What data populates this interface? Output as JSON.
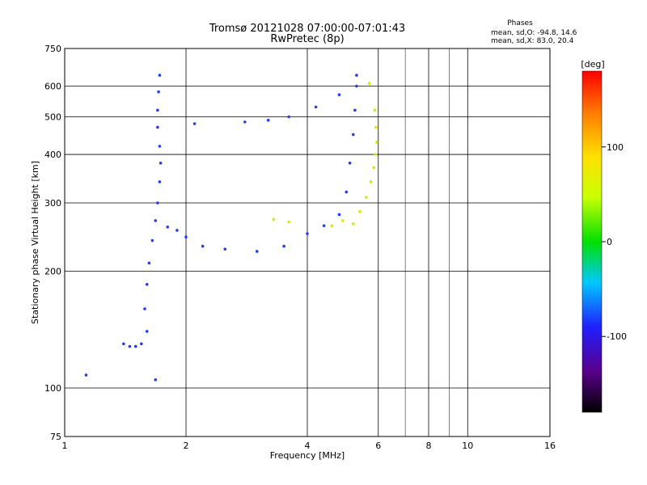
{
  "chart_data": {
    "type": "scatter",
    "title": "Tromsø 20121028 07:00:00-07:01:43",
    "subtitle": "RwPretec (8p)",
    "xlabel": "Frequency [MHz]",
    "ylabel": "Stationary phase Virtual Height [km]",
    "x_scale": "log",
    "y_scale": "log",
    "xlim": [
      1,
      16
    ],
    "ylim": [
      75,
      750
    ],
    "x_ticks": [
      1,
      2,
      4,
      6,
      8,
      10,
      16
    ],
    "y_ticks": [
      75,
      100,
      200,
      300,
      400,
      500,
      600,
      750
    ],
    "grid": true,
    "stats": {
      "heading": "Phases",
      "line_o": "mean, sd,O: -94.8, 14.6",
      "line_x": "mean, sd,X:  83.0, 20.4"
    },
    "colorbar": {
      "label": "[deg]",
      "min": -180,
      "max": 180,
      "ticks": [
        100,
        0,
        -100
      ]
    },
    "series": [
      {
        "mode": "O",
        "points": [
          [
            1.4,
            130
          ],
          [
            1.45,
            128
          ],
          [
            1.5,
            128
          ],
          [
            1.55,
            130
          ],
          [
            1.6,
            140
          ],
          [
            1.58,
            160
          ],
          [
            1.6,
            185
          ],
          [
            1.62,
            210
          ],
          [
            1.65,
            240
          ],
          [
            1.68,
            270
          ],
          [
            1.7,
            300
          ],
          [
            1.72,
            340
          ],
          [
            1.73,
            380
          ],
          [
            1.72,
            420
          ],
          [
            1.7,
            470
          ],
          [
            1.7,
            520
          ],
          [
            1.71,
            580
          ],
          [
            1.72,
            640
          ],
          [
            1.8,
            260
          ],
          [
            1.9,
            255
          ],
          [
            2.0,
            245
          ],
          [
            2.2,
            232
          ],
          [
            2.5,
            228
          ],
          [
            3.0,
            225
          ],
          [
            3.5,
            232
          ],
          [
            4.0,
            250
          ],
          [
            4.4,
            262
          ],
          [
            4.8,
            280
          ],
          [
            5.0,
            320
          ],
          [
            5.1,
            380
          ],
          [
            5.2,
            450
          ],
          [
            5.25,
            520
          ],
          [
            5.3,
            600
          ],
          [
            5.3,
            640
          ],
          [
            2.1,
            480
          ],
          [
            2.8,
            485
          ],
          [
            3.2,
            490
          ],
          [
            3.6,
            500
          ],
          [
            4.2,
            530
          ],
          [
            4.8,
            570
          ],
          [
            1.13,
            108
          ],
          [
            1.68,
            105
          ]
        ]
      },
      {
        "mode": "X",
        "points": [
          [
            5.2,
            265
          ],
          [
            5.4,
            285
          ],
          [
            5.6,
            310
          ],
          [
            5.75,
            340
          ],
          [
            5.85,
            370
          ],
          [
            5.9,
            400
          ],
          [
            5.95,
            430
          ],
          [
            5.92,
            470
          ],
          [
            5.88,
            520
          ],
          [
            5.7,
            610
          ],
          [
            3.3,
            272
          ],
          [
            3.6,
            268
          ],
          [
            4.6,
            262
          ],
          [
            4.9,
            270
          ]
        ]
      }
    ]
  }
}
